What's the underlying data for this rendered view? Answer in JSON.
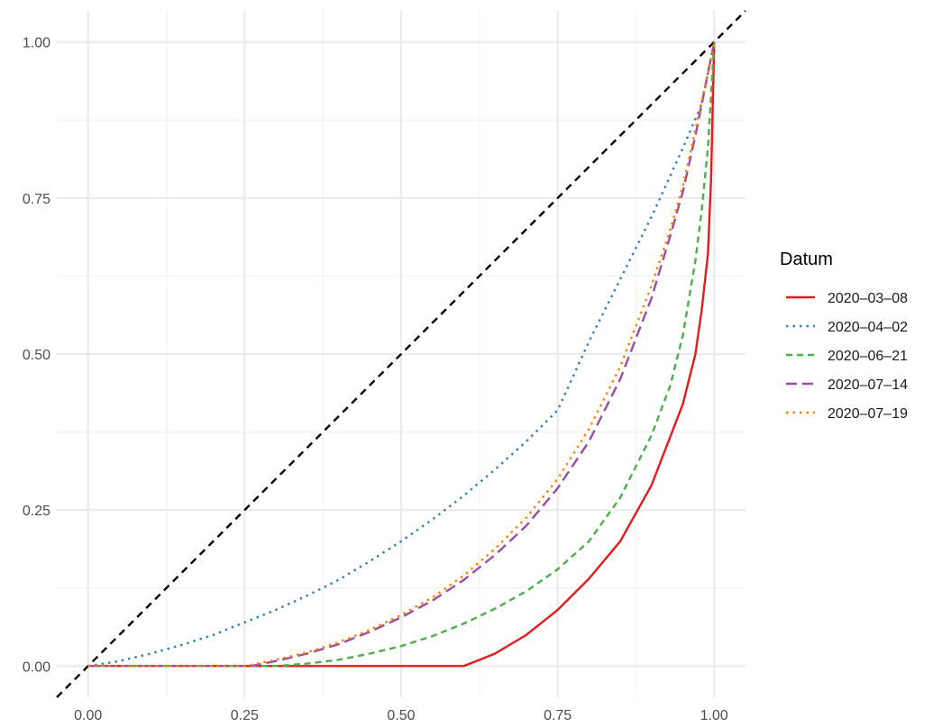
{
  "chart_data": {
    "type": "line",
    "title": "",
    "xlabel": "",
    "ylabel": "",
    "xlim": [
      -0.05,
      1.05
    ],
    "ylim": [
      -0.05,
      1.05
    ],
    "x_ticks": [
      "0.00",
      "0.25",
      "0.50",
      "0.75",
      "1.00"
    ],
    "y_ticks": [
      "0.00",
      "0.25",
      "0.50",
      "0.75",
      "1.00"
    ],
    "grid": true,
    "legend_position": "right",
    "legend_title": "Datum",
    "reference_line": {
      "x": [
        -0.05,
        1.05
      ],
      "y": [
        -0.05,
        1.05
      ],
      "color": "#000000",
      "style": "dashed"
    },
    "series": [
      {
        "name": "2020–03–08",
        "color": "#E41A1C",
        "style": "solid",
        "x": [
          0,
          0.6,
          0.65,
          0.7,
          0.75,
          0.8,
          0.85,
          0.9,
          0.95,
          0.97,
          0.98,
          0.99,
          0.995,
          1.0
        ],
        "y": [
          0,
          0,
          0.02,
          0.05,
          0.09,
          0.14,
          0.2,
          0.29,
          0.42,
          0.5,
          0.57,
          0.66,
          0.78,
          1.0
        ]
      },
      {
        "name": "2020–04–02",
        "color": "#377EB8",
        "style": "dotted",
        "x": [
          0,
          0.05,
          0.1,
          0.15,
          0.2,
          0.25,
          0.3,
          0.35,
          0.4,
          0.45,
          0.5,
          0.55,
          0.6,
          0.65,
          0.7,
          0.75,
          0.8,
          0.85,
          0.9,
          0.95,
          0.98,
          1.0
        ],
        "y": [
          0,
          0.008,
          0.02,
          0.034,
          0.05,
          0.07,
          0.09,
          0.113,
          0.138,
          0.168,
          0.2,
          0.235,
          0.273,
          0.315,
          0.36,
          0.41,
          0.52,
          0.62,
          0.72,
          0.83,
          0.9,
          1.0
        ]
      },
      {
        "name": "2020–06–21",
        "color": "#4DAF4A",
        "style": "dashed",
        "x": [
          0,
          0.3,
          0.35,
          0.4,
          0.45,
          0.5,
          0.55,
          0.6,
          0.65,
          0.7,
          0.75,
          0.8,
          0.85,
          0.9,
          0.93,
          0.95,
          0.97,
          0.98,
          0.99,
          1.0
        ],
        "y": [
          0,
          0,
          0.004,
          0.01,
          0.02,
          0.032,
          0.048,
          0.068,
          0.092,
          0.12,
          0.155,
          0.2,
          0.27,
          0.37,
          0.45,
          0.53,
          0.65,
          0.73,
          0.83,
          1.0
        ]
      },
      {
        "name": "2020–07–14",
        "color": "#984EA3",
        "style": "longdash",
        "x": [
          0,
          0.26,
          0.3,
          0.35,
          0.4,
          0.45,
          0.5,
          0.55,
          0.6,
          0.65,
          0.7,
          0.75,
          0.8,
          0.85,
          0.9,
          0.93,
          0.95,
          0.97,
          0.99,
          1.0
        ],
        "y": [
          0,
          0,
          0.008,
          0.02,
          0.035,
          0.055,
          0.078,
          0.105,
          0.138,
          0.178,
          0.225,
          0.285,
          0.36,
          0.46,
          0.59,
          0.69,
          0.76,
          0.85,
          0.95,
          1.0
        ]
      },
      {
        "name": "2020–07–19",
        "color": "#FF7F00",
        "style": "dotted",
        "x": [
          0,
          0.25,
          0.3,
          0.35,
          0.4,
          0.45,
          0.5,
          0.55,
          0.6,
          0.65,
          0.7,
          0.75,
          0.8,
          0.85,
          0.9,
          0.93,
          0.95,
          0.97,
          0.99,
          1.0
        ],
        "y": [
          0,
          0,
          0.01,
          0.022,
          0.038,
          0.058,
          0.082,
          0.11,
          0.145,
          0.188,
          0.238,
          0.3,
          0.38,
          0.48,
          0.61,
          0.7,
          0.77,
          0.86,
          0.95,
          1.0
        ]
      }
    ]
  }
}
